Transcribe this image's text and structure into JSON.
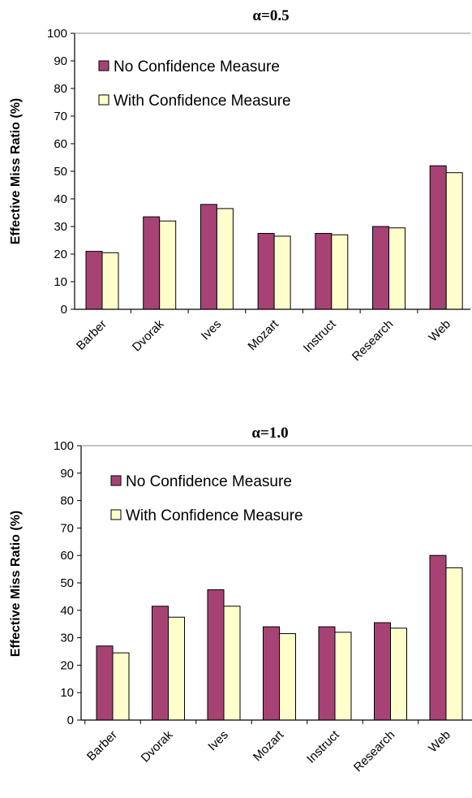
{
  "chart_data": [
    {
      "type": "bar",
      "title": "α=0.5",
      "ylabel": "Effective Miss Ratio (%)",
      "xlabel": "",
      "ylim": [
        0,
        100
      ],
      "yticks": [
        0,
        10,
        20,
        30,
        40,
        50,
        60,
        70,
        80,
        90,
        100
      ],
      "categories": [
        "Barber",
        "Dvorak",
        "Ives",
        "Mozart",
        "Instruct",
        "Research",
        "Web"
      ],
      "series": [
        {
          "name": "No Confidence Measure",
          "color": "#A64374",
          "values": [
            21,
            33.5,
            38,
            27.5,
            27.5,
            30,
            52
          ]
        },
        {
          "name": "With Confidence Measure",
          "color": "#FFFFCC",
          "values": [
            20.5,
            32,
            36.5,
            26.5,
            27,
            29.5,
            49.5
          ]
        }
      ],
      "legend_position": "top-left",
      "grid": false
    },
    {
      "type": "bar",
      "title": "α=1.0",
      "ylabel": "Effective Miss Ratio (%)",
      "xlabel": "",
      "ylim": [
        0,
        100
      ],
      "yticks": [
        0,
        10,
        20,
        30,
        40,
        50,
        60,
        70,
        80,
        90,
        100
      ],
      "categories": [
        "Barber",
        "Dvorak",
        "Ives",
        "Mozart",
        "Instruct",
        "Research",
        "Web"
      ],
      "series": [
        {
          "name": "No Confidence Measure",
          "color": "#A64374",
          "values": [
            27,
            41.5,
            47.5,
            34,
            34,
            35.5,
            60
          ]
        },
        {
          "name": "With Confidence Measure",
          "color": "#FFFFCC",
          "values": [
            24.5,
            37.5,
            41.5,
            31.5,
            32,
            33.5,
            55.5
          ]
        }
      ],
      "legend_position": "top-left",
      "grid": false
    }
  ]
}
